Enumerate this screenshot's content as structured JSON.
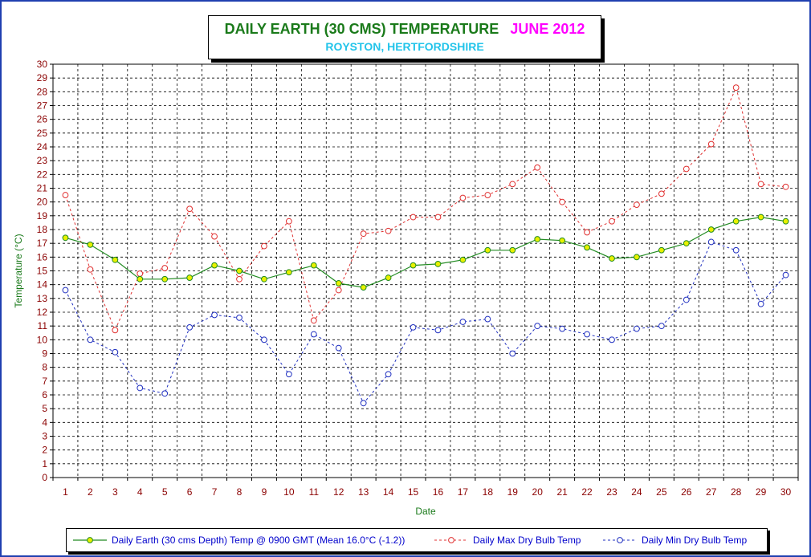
{
  "colors": {
    "frame": "#1f3fb0",
    "title": "#1a7a1a",
    "month": "#ff00ff",
    "subtitle": "#22c4ea",
    "axis_text": "#8b0000",
    "ylabel": "#1a7a1a",
    "xlabel": "#1a7a1a",
    "earth_line": "#228b22",
    "earth_marker": "#e8f000",
    "max_line": "#e03030",
    "min_line": "#2030c0",
    "legend_text": "#0000cc"
  },
  "chart_data": {
    "type": "line",
    "title": "DAILY EARTH (30 CMS) TEMPERATURE",
    "title_month": "JUNE 2012",
    "subtitle": "ROYSTON, HERTFORDSHIRE",
    "xlabel": "Date",
    "ylabel": "Temperature (°C)",
    "ylim": [
      0,
      30
    ],
    "grid": true,
    "legend_position": "bottom",
    "categories": [
      "1",
      "2",
      "3",
      "4",
      "5",
      "6",
      "7",
      "8",
      "9",
      "10",
      "11",
      "12",
      "13",
      "14",
      "15",
      "16",
      "17",
      "18",
      "19",
      "20",
      "21",
      "22",
      "23",
      "24",
      "25",
      "26",
      "27",
      "28",
      "29",
      "30"
    ],
    "series": [
      {
        "name": "Daily Earth (30 cms Depth) Temp @ 0900 GMT (Mean 16.0°C (-1.2))",
        "style": "solid",
        "values": [
          17.4,
          16.9,
          15.8,
          14.4,
          14.4,
          14.5,
          15.4,
          15.0,
          14.4,
          14.9,
          15.4,
          14.1,
          13.8,
          14.5,
          15.4,
          15.5,
          15.8,
          16.5,
          16.5,
          17.3,
          17.2,
          16.7,
          15.9,
          16.0,
          16.5,
          17.0,
          18.0,
          18.6,
          18.9,
          18.6
        ]
      },
      {
        "name": "Daily Max Dry Bulb Temp",
        "style": "dashed",
        "values": [
          20.5,
          15.1,
          10.7,
          14.8,
          15.2,
          19.5,
          17.5,
          14.4,
          16.8,
          18.6,
          11.4,
          13.6,
          17.7,
          17.9,
          18.9,
          18.9,
          20.3,
          20.5,
          21.3,
          22.5,
          20.0,
          17.8,
          18.6,
          19.8,
          20.6,
          22.4,
          24.2,
          28.3,
          21.3,
          21.1
        ]
      },
      {
        "name": "Daily Min Dry Bulb Temp",
        "style": "dashed",
        "values": [
          13.6,
          10.0,
          9.1,
          6.5,
          6.1,
          10.9,
          11.8,
          11.6,
          10.0,
          7.5,
          10.4,
          9.4,
          5.4,
          7.5,
          10.9,
          10.7,
          11.3,
          11.5,
          9.0,
          11.0,
          10.8,
          10.4,
          10.0,
          10.8,
          11.0,
          12.9,
          17.1,
          16.5,
          12.6,
          14.7
        ]
      }
    ]
  }
}
